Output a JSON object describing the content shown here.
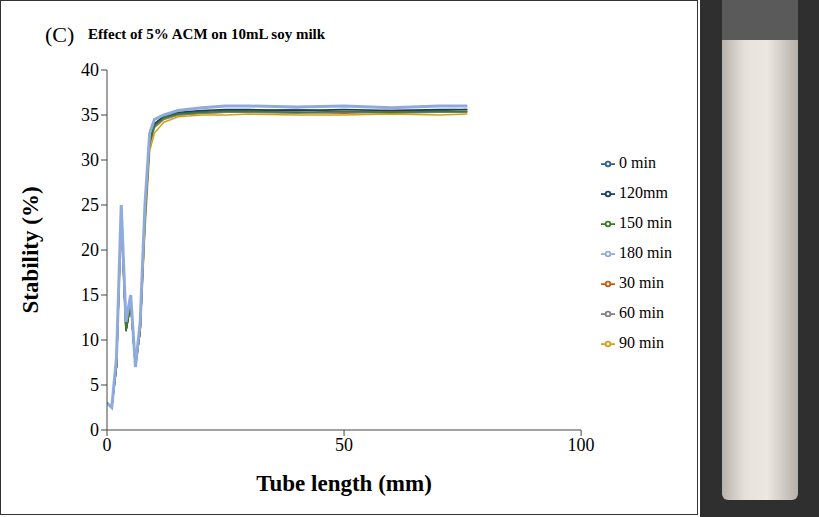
{
  "chart_data": {
    "type": "line",
    "panel_label": "(C)",
    "title": "Effect of 5% ACM on 10mL soy milk",
    "x_label": "Tube length (mm)",
    "y_label": "Stability (%)",
    "x": [
      0,
      1,
      2,
      3,
      4,
      5,
      6,
      7,
      8,
      9,
      10,
      12,
      15,
      20,
      25,
      30,
      40,
      50,
      60,
      70,
      76
    ],
    "series": [
      {
        "name": "0 min",
        "color": "#2e5f8f",
        "values": [
          3,
          2.5,
          7,
          24,
          11,
          14,
          7,
          11,
          24,
          32,
          34,
          34.8,
          35.2,
          35.4,
          35.5,
          35.5,
          35.6,
          35.4,
          35.5,
          35.5,
          35.6
        ]
      },
      {
        "name": "30 min",
        "color": "#c55a11",
        "values": [
          3,
          2.5,
          7,
          24,
          11,
          14,
          7,
          11,
          23,
          32,
          33.8,
          34.6,
          35,
          35.2,
          35.3,
          35.4,
          35.3,
          35.2,
          35.4,
          35.3,
          35.4
        ]
      },
      {
        "name": "60 min",
        "color": "#808080",
        "values": [
          3,
          2.5,
          7,
          24,
          11,
          14,
          7,
          11,
          23,
          31.5,
          33.6,
          34.5,
          35,
          35.2,
          35.3,
          35.3,
          35.2,
          35.3,
          35.2,
          35.3,
          35.3
        ]
      },
      {
        "name": "90 min",
        "color": "#d4a017",
        "values": [
          3,
          2.5,
          7,
          23,
          11,
          14,
          7,
          11,
          22,
          31,
          33,
          34.2,
          34.8,
          35,
          35,
          35.1,
          35,
          35,
          35.1,
          35,
          35.1
        ]
      },
      {
        "name": "120mm",
        "color": "#1f3864",
        "values": [
          3,
          2.5,
          7,
          24,
          11,
          14,
          7,
          11,
          24,
          32,
          34,
          34.9,
          35.3,
          35.5,
          35.6,
          35.6,
          35.5,
          35.6,
          35.5,
          35.6,
          35.6
        ]
      },
      {
        "name": "150 min",
        "color": "#3a7d22",
        "values": [
          3,
          2.5,
          7,
          24,
          11,
          14,
          7,
          11,
          23,
          32,
          33.8,
          34.7,
          35.1,
          35.3,
          35.4,
          35.4,
          35.3,
          35.4,
          35.3,
          35.4,
          35.4
        ]
      },
      {
        "name": "180 min",
        "color": "#8faadc",
        "values": [
          3,
          2.5,
          8,
          25,
          12,
          15,
          7,
          12,
          25,
          33,
          34.5,
          35,
          35.5,
          35.8,
          36,
          36,
          35.9,
          36,
          35.8,
          36,
          36
        ]
      }
    ],
    "xlim": [
      0,
      100
    ],
    "xticks": [
      0,
      50,
      100
    ],
    "ylim": [
      0,
      40
    ],
    "yticks": [
      0,
      5,
      10,
      15,
      20,
      25,
      30,
      35,
      40
    ],
    "grid": false,
    "legend": "right"
  }
}
